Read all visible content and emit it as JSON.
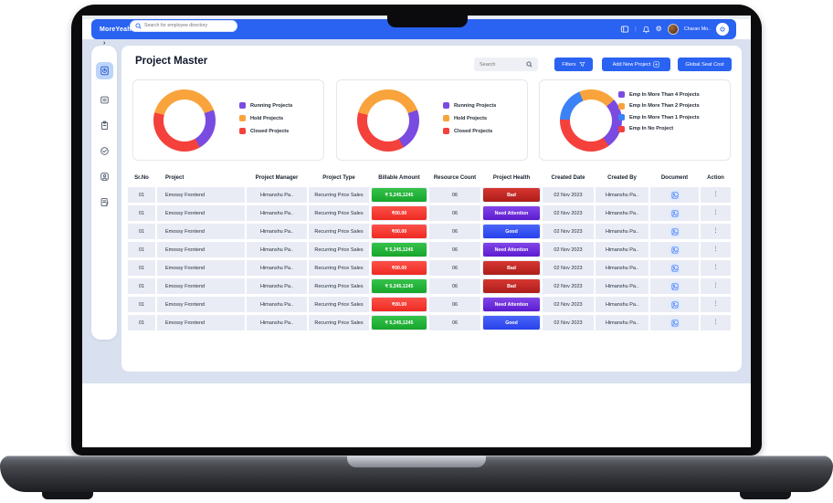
{
  "topbar": {
    "logo": "MoreYeahs",
    "search_placeholder": "Search for employee directory",
    "user_name": "Charan Mo..",
    "divider": "|"
  },
  "sidebar": {
    "items": [
      {
        "name": "project-master",
        "active": true
      },
      {
        "name": "notes",
        "active": false
      },
      {
        "name": "clipboard",
        "active": false
      },
      {
        "name": "approvals",
        "active": false
      },
      {
        "name": "employees",
        "active": false
      },
      {
        "name": "reports",
        "active": false
      }
    ]
  },
  "page": {
    "title": "Project Master",
    "search_placeholder": "Search",
    "filters_label": "Filters",
    "add_project_label": "Add New Project",
    "seat_cost_label": "Global Seat Cost"
  },
  "colors": {
    "accent_blue": "#2a62f1",
    "donut_purple": "#7a4be0",
    "donut_orange": "#f9a33c",
    "donut_red": "#f4413c",
    "donut_blue": "#3b82f6",
    "badge_green": "#23b33a",
    "badge_red": "#f23a32",
    "badge_bad_red": "#c42b26",
    "badge_attention_purple": "#6c2cd9",
    "badge_good_blue": "#3450f0",
    "row_bg": "#e9ecf5",
    "page_bg": "#d9e0ef"
  },
  "charts": [
    {
      "type": "donut",
      "legend": [
        {
          "label": "Running Projects",
          "color": "#7a4be0",
          "value_pct": 22
        },
        {
          "label": "Hold Projects",
          "color": "#f9a33c",
          "value_pct": 40
        },
        {
          "label": "Closed Projects",
          "color": "#f4413c",
          "value_pct": 38
        }
      ],
      "segments": [
        {
          "color": "#f9a33c",
          "from": 0,
          "to": 70
        },
        {
          "color": "#7a4be0",
          "from": 70,
          "to": 150
        },
        {
          "color": "#f4413c",
          "from": 150,
          "to": 285
        },
        {
          "color": "#f9a33c",
          "from": 285,
          "to": 360
        }
      ]
    },
    {
      "type": "donut",
      "legend": [
        {
          "label": "Running Projects",
          "color": "#7a4be0",
          "value_pct": 22
        },
        {
          "label": "Hold Projects",
          "color": "#f9a33c",
          "value_pct": 40
        },
        {
          "label": "Closed Projects",
          "color": "#f4413c",
          "value_pct": 38
        }
      ],
      "segments": [
        {
          "color": "#f9a33c",
          "from": 0,
          "to": 70
        },
        {
          "color": "#7a4be0",
          "from": 70,
          "to": 150
        },
        {
          "color": "#f4413c",
          "from": 150,
          "to": 285
        },
        {
          "color": "#f9a33c",
          "from": 285,
          "to": 360
        }
      ]
    },
    {
      "type": "donut",
      "legend": [
        {
          "label": "Emp In More Than 4 Projects",
          "color": "#7a4be0",
          "value_pct": 27
        },
        {
          "label": "Emp In More Than 2 Projects",
          "color": "#f9a33c",
          "value_pct": 19
        },
        {
          "label": "Emp In More Than 1 Projects",
          "color": "#3b82f6",
          "value_pct": 18
        },
        {
          "label": "Emp In No Project",
          "color": "#f4413c",
          "value_pct": 36
        }
      ],
      "segments": [
        {
          "color": "#f9a33c",
          "from": 0,
          "to": 48
        },
        {
          "color": "#7a4be0",
          "from": 48,
          "to": 145
        },
        {
          "color": "#f4413c",
          "from": 145,
          "to": 272
        },
        {
          "color": "#3b82f6",
          "from": 272,
          "to": 338
        },
        {
          "color": "#f9a33c",
          "from": 338,
          "to": 360
        }
      ]
    }
  ],
  "table": {
    "columns": [
      "Sr.No",
      "Project",
      "Project Manager",
      "Project Type",
      "Billable Amount",
      "Resource Count",
      "Project Health",
      "Created Date",
      "Created By",
      "Document",
      "Action"
    ],
    "rows": [
      {
        "sr": "01",
        "project": "Emossy Frontend",
        "manager": "Himanshu Pa..",
        "type": "Recurring Price Sales",
        "amount": "₹ 5,245,1245",
        "amount_type": "green",
        "count": "06",
        "health": "Bad",
        "health_type": "bad",
        "date": "02 Nov 2023",
        "created_by": "Himanshu Pa.."
      },
      {
        "sr": "01",
        "project": "Emossy Frontend",
        "manager": "Himanshu Pa..",
        "type": "Recurring Price Sales",
        "amount": "₹00.00",
        "amount_type": "red",
        "count": "06",
        "health": "Need Attention",
        "health_type": "attention",
        "date": "02 Nov 2023",
        "created_by": "Himanshu Pa.."
      },
      {
        "sr": "01",
        "project": "Emossy Frontend",
        "manager": "Himanshu Pa..",
        "type": "Recurring Price Sales",
        "amount": "₹00.00",
        "amount_type": "red",
        "count": "06",
        "health": "Good",
        "health_type": "good",
        "date": "02 Nov 2023",
        "created_by": "Himanshu Pa.."
      },
      {
        "sr": "01",
        "project": "Emossy Frontend",
        "manager": "Himanshu Pa..",
        "type": "Recurring Price Sales",
        "amount": "₹ 5,245,1245",
        "amount_type": "green",
        "count": "06",
        "health": "Need Attention",
        "health_type": "attention",
        "date": "02 Nov 2023",
        "created_by": "Himanshu Pa.."
      },
      {
        "sr": "01",
        "project": "Emossy Frontend",
        "manager": "Himanshu Pa..",
        "type": "Recurring Price Sales",
        "amount": "₹00.00",
        "amount_type": "red",
        "count": "06",
        "health": "Bad",
        "health_type": "bad",
        "date": "02 Nov 2023",
        "created_by": "Himanshu Pa.."
      },
      {
        "sr": "01",
        "project": "Emossy Frontend",
        "manager": "Himanshu Pa..",
        "type": "Recurring Price Sales",
        "amount": "₹ 5,245,1245",
        "amount_type": "green",
        "count": "06",
        "health": "Bad",
        "health_type": "bad",
        "date": "02 Nov 2023",
        "created_by": "Himanshu Pa.."
      },
      {
        "sr": "01",
        "project": "Emossy Frontend",
        "manager": "Himanshu Pa..",
        "type": "Recurring Price Sales",
        "amount": "₹00.00",
        "amount_type": "red",
        "count": "06",
        "health": "Need Attention",
        "health_type": "attention",
        "date": "02 Nov 2023",
        "created_by": "Himanshu Pa.."
      },
      {
        "sr": "01",
        "project": "Emossy Frontend",
        "manager": "Himanshu Pa..",
        "type": "Recurring Price Sales",
        "amount": "₹ 5,245,1245",
        "amount_type": "green",
        "count": "06",
        "health": "Good",
        "health_type": "good",
        "date": "02 Nov 2023",
        "created_by": "Himanshu Pa.."
      }
    ]
  }
}
